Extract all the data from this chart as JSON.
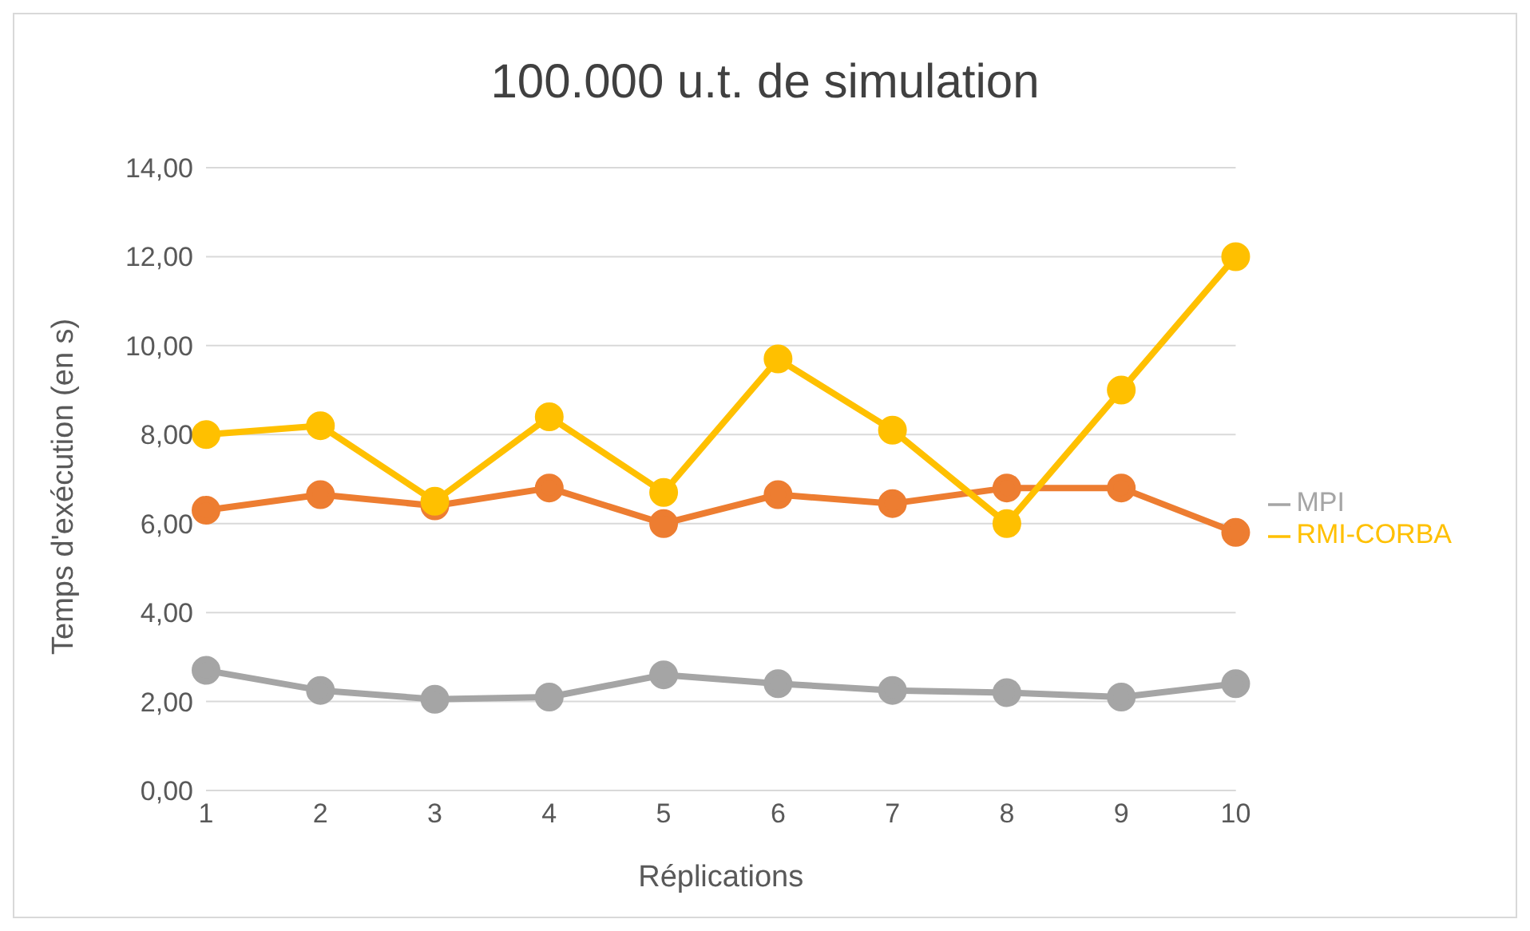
{
  "chart_data": {
    "type": "line",
    "title": "100.000 u.t. de simulation",
    "xlabel": "Réplications",
    "ylabel": "Temps d'exécution (en s)",
    "categories": [
      "1",
      "2",
      "3",
      "4",
      "5",
      "6",
      "7",
      "8",
      "9",
      "10"
    ],
    "series": [
      {
        "color": "#ed7d31",
        "values": [
          6.3,
          6.65,
          6.4,
          6.8,
          6.0,
          6.65,
          6.45,
          6.8,
          6.8,
          5.8
        ]
      },
      {
        "name": "MPI",
        "color": "#a5a5a5",
        "values": [
          2.7,
          2.25,
          2.05,
          2.1,
          2.6,
          2.4,
          2.25,
          2.2,
          2.1,
          2.4
        ]
      },
      {
        "name": "RMI-CORBA",
        "color": "#ffc000",
        "values": [
          8.0,
          8.2,
          6.5,
          8.4,
          6.7,
          9.7,
          8.1,
          6.0,
          9.0,
          12.0
        ]
      }
    ],
    "ylim": [
      0,
      14
    ],
    "yticks": [
      {
        "value": 0,
        "label": "0,00"
      },
      {
        "value": 2,
        "label": "2,00"
      },
      {
        "value": 4,
        "label": "4,00"
      },
      {
        "value": 6,
        "label": "6,00"
      },
      {
        "value": 8,
        "label": "8,00"
      },
      {
        "value": 10,
        "label": "10,00"
      },
      {
        "value": 12,
        "label": "12,00"
      },
      {
        "value": 14,
        "label": "14,00"
      }
    ],
    "grid": "y",
    "legend": "right",
    "marker": "circle",
    "line_style": "solid"
  }
}
